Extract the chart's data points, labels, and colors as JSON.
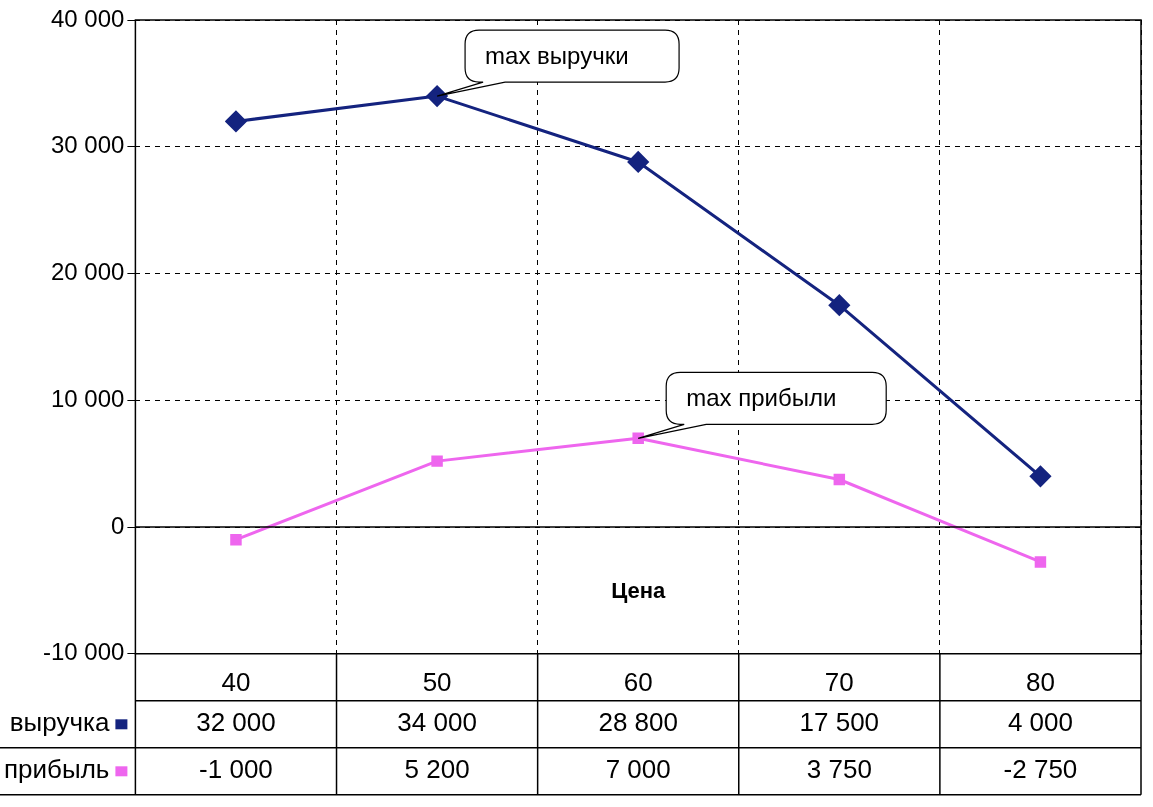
{
  "chart_data": {
    "type": "line",
    "xlabel": "Цена",
    "categories": [
      "40",
      "50",
      "60",
      "70",
      "80"
    ],
    "series": [
      {
        "name": "выручка",
        "color": "#14237f",
        "marker": "diamond",
        "values": [
          32000,
          34000,
          28800,
          17500,
          4000
        ],
        "value_labels": [
          "32 000",
          "34 000",
          "28 800",
          "17 500",
          "4 000"
        ]
      },
      {
        "name": "прибыль",
        "color": "#ee66ee",
        "marker": "square",
        "values": [
          -1000,
          5200,
          7000,
          3750,
          -2750
        ],
        "value_labels": [
          "-1 000",
          "5 200",
          "7 000",
          "3 750",
          "-2 750"
        ]
      }
    ],
    "ylim": [
      -10000,
      40000
    ],
    "yticks": [
      {
        "value": -10000,
        "label": "-10 000"
      },
      {
        "value": 0,
        "label": "0"
      },
      {
        "value": 10000,
        "label": "10 000"
      },
      {
        "value": 20000,
        "label": "20 000"
      },
      {
        "value": 30000,
        "label": "30 000"
      },
      {
        "value": 40000,
        "label": "40 000"
      }
    ],
    "grid": true,
    "legend": "left",
    "annotations": [
      {
        "text": "max выручки",
        "x": "50",
        "y": 34000
      },
      {
        "text": "max прибыли",
        "x": "60",
        "y": 7000
      }
    ]
  }
}
